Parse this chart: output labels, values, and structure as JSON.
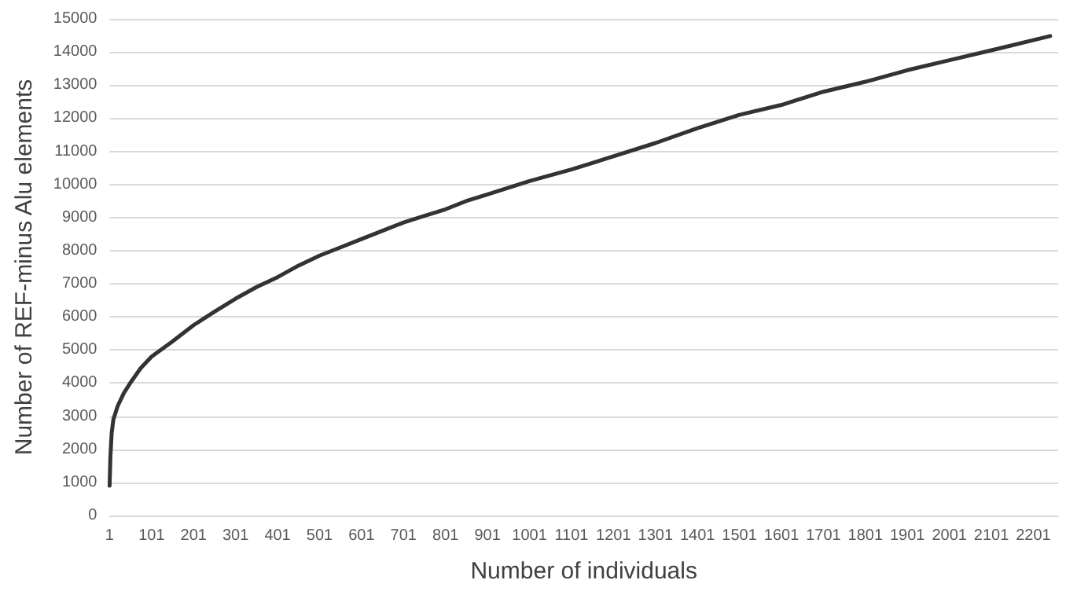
{
  "chart_data": {
    "type": "line",
    "xlabel": "Number of individuals",
    "ylabel": "Number of REF-minus Alu elements",
    "x": [
      1,
      3,
      6,
      10,
      20,
      35,
      50,
      75,
      101,
      150,
      201,
      250,
      301,
      351,
      401,
      451,
      501,
      551,
      601,
      651,
      701,
      751,
      801,
      851,
      901,
      951,
      1001,
      1101,
      1201,
      1301,
      1401,
      1501,
      1601,
      1701,
      1801,
      1901,
      2001,
      2101,
      2241
    ],
    "series": [
      {
        "color": "#333333",
        "values": [
          900,
          1800,
          2500,
          2900,
          3300,
          3700,
          4000,
          4450,
          4800,
          5250,
          5750,
          6150,
          6550,
          6900,
          7200,
          7550,
          7850,
          8100,
          8350,
          8600,
          8850,
          9050,
          9250,
          9500,
          9700,
          9900,
          10100,
          10450,
          10850,
          11250,
          11700,
          12100,
          12400,
          12800,
          13100,
          13450,
          13750,
          14050,
          14480
        ]
      }
    ],
    "xlim": [
      1,
      2260
    ],
    "xticks": [
      1,
      101,
      201,
      301,
      401,
      501,
      601,
      701,
      801,
      901,
      1001,
      1101,
      1201,
      1301,
      1401,
      1501,
      1601,
      1701,
      1801,
      1901,
      2001,
      2101,
      2201
    ],
    "ylim": [
      0,
      15000
    ],
    "yticks": [
      0,
      1000,
      2000,
      3000,
      4000,
      5000,
      6000,
      7000,
      8000,
      9000,
      10000,
      11000,
      12000,
      13000,
      14000,
      15000
    ],
    "grid": "y",
    "marker": "none",
    "line_style": "solid"
  }
}
